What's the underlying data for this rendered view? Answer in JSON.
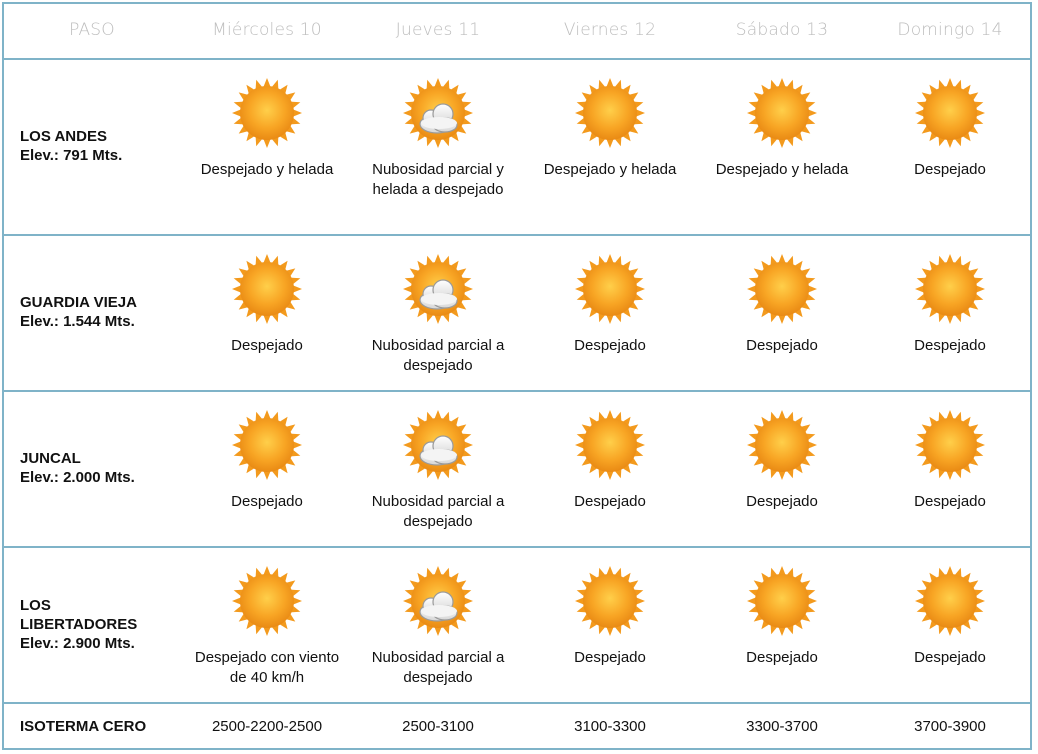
{
  "colors": {
    "border": "#7fb3c8",
    "header_text": "#bdbdbd",
    "sun": "#f39a1d"
  },
  "header": {
    "paso": "PASO",
    "days": [
      "Miércoles 10",
      "Jueves 11",
      "Viernes 12",
      "Sábado 13",
      "Domingo 14"
    ]
  },
  "rows": [
    {
      "name_lines": [
        "LOS ANDES",
        "Elev.: 791 Mts."
      ],
      "cells": [
        {
          "icon": "sun-icon",
          "text": "Despejado y helada"
        },
        {
          "icon": "sun-cloud-icon",
          "text": "Nubosidad parcial y helada a despejado"
        },
        {
          "icon": "sun-icon",
          "text": "Despejado y helada"
        },
        {
          "icon": "sun-icon",
          "text": "Despejado y helada"
        },
        {
          "icon": "sun-icon",
          "text": "Despejado"
        }
      ]
    },
    {
      "name_lines": [
        "GUARDIA VIEJA",
        "Elev.: 1.544 Mts."
      ],
      "cells": [
        {
          "icon": "sun-icon",
          "text": "Despejado"
        },
        {
          "icon": "sun-cloud-icon",
          "text": "Nubosidad parcial a despejado"
        },
        {
          "icon": "sun-icon",
          "text": "Despejado"
        },
        {
          "icon": "sun-icon",
          "text": "Despejado"
        },
        {
          "icon": "sun-icon",
          "text": "Despejado"
        }
      ]
    },
    {
      "name_lines": [
        "JUNCAL",
        "Elev.: 2.000 Mts."
      ],
      "cells": [
        {
          "icon": "sun-icon",
          "text": "Despejado"
        },
        {
          "icon": "sun-cloud-icon",
          "text": "Nubosidad parcial a despejado"
        },
        {
          "icon": "sun-icon",
          "text": "Despejado"
        },
        {
          "icon": "sun-icon",
          "text": "Despejado"
        },
        {
          "icon": "sun-icon",
          "text": "Despejado"
        }
      ]
    },
    {
      "name_lines": [
        "LOS",
        "LIBERTADORES",
        "Elev.: 2.900 Mts."
      ],
      "cells": [
        {
          "icon": "sun-icon",
          "text": "Despejado con viento de 40 km/h"
        },
        {
          "icon": "sun-cloud-icon",
          "text": "Nubosidad parcial a despejado"
        },
        {
          "icon": "sun-icon",
          "text": "Despejado"
        },
        {
          "icon": "sun-icon",
          "text": "Despejado"
        },
        {
          "icon": "sun-icon",
          "text": "Despejado"
        }
      ]
    }
  ],
  "isoterma": {
    "label": "ISOTERMA CERO",
    "values": [
      "2500-2200-2500",
      "2500-3100",
      "3100-3300",
      "3300-3700",
      "3700-3900"
    ]
  }
}
